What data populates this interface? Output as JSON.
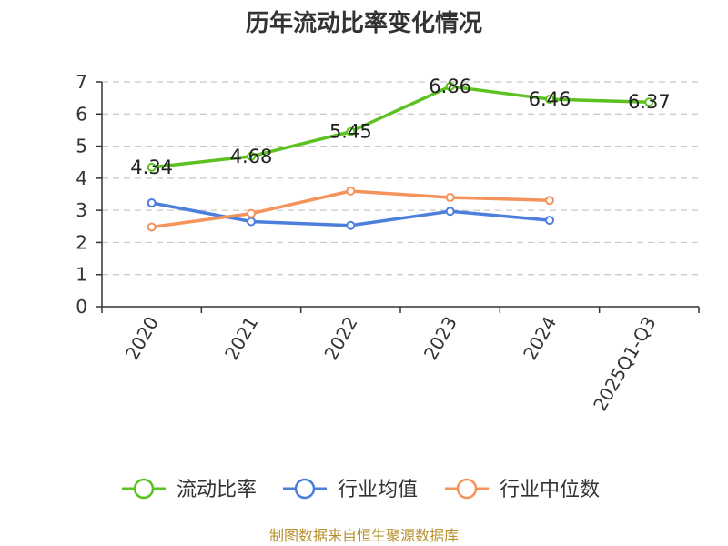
{
  "chart_data": {
    "type": "line",
    "title": "历年流动比率变化情况",
    "categories": [
      "2020",
      "2021",
      "2022",
      "2023",
      "2024",
      "2025Q1-Q3"
    ],
    "ylim": [
      0,
      7
    ],
    "yticks": [
      "0",
      "1",
      "2",
      "3",
      "4",
      "5",
      "6",
      "7"
    ],
    "grid": true,
    "legend_position": "bottom",
    "series": [
      {
        "name": "流动比率",
        "color": "#5cc121",
        "values": [
          4.34,
          4.68,
          5.45,
          6.86,
          6.46,
          6.37
        ],
        "labels": [
          "4.34",
          "4.68",
          "5.45",
          "6.86",
          "6.46",
          "6.37"
        ]
      },
      {
        "name": "行业均值",
        "color": "#4c7edc",
        "values": [
          3.23,
          2.65,
          2.53,
          2.97,
          2.69,
          null
        ]
      },
      {
        "name": "行业中位数",
        "color": "#f4935a",
        "values": [
          2.48,
          2.9,
          3.6,
          3.4,
          3.31,
          null
        ]
      }
    ],
    "source": "制图数据来自恒生聚源数据库"
  }
}
